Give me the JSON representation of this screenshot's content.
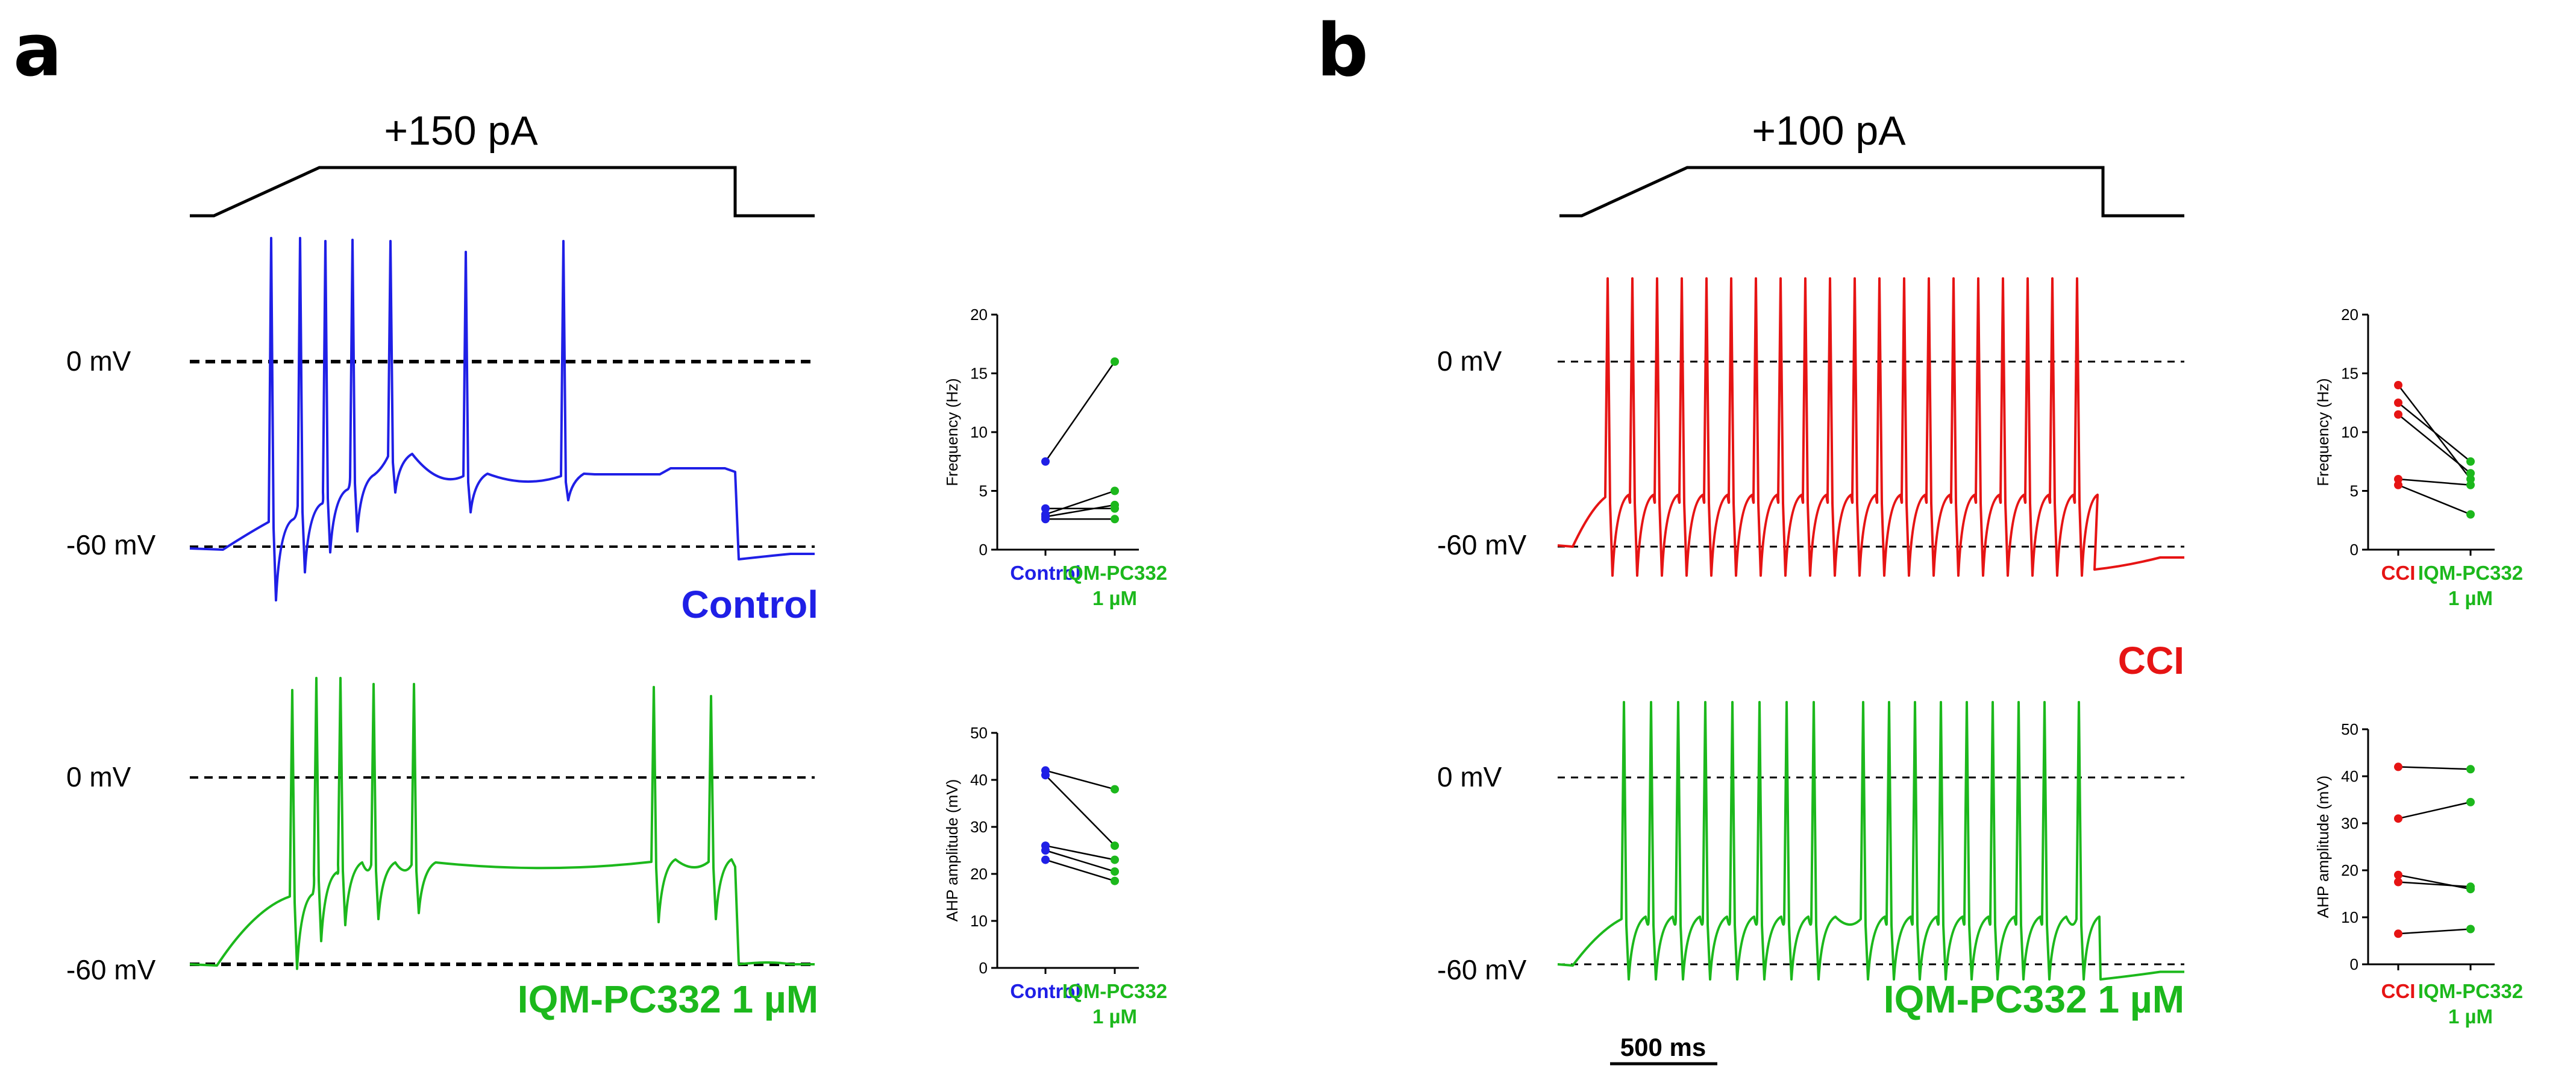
{
  "colors": {
    "control": "#1f1fe6",
    "drug": "#1cb81c",
    "cci": "#e61414",
    "black": "#000000"
  },
  "panels": [
    {
      "letter": "a",
      "stimulus_label": "+150 pA",
      "traces": [
        {
          "condition_label": "Control",
          "color": "#1f1fe6",
          "label_0mv": "0 mV",
          "label_60mv": "-60 mV",
          "spike_count": 7,
          "thick_dash": true
        },
        {
          "condition_label": "IQM-PC332 1 µM",
          "color": "#1cb81c",
          "label_0mv": "0 mV",
          "label_60mv": "-60 mV",
          "spike_count": 7,
          "thick_dash": false
        }
      ]
    },
    {
      "letter": "b",
      "stimulus_label": "+100 pA",
      "traces": [
        {
          "condition_label": "CCI",
          "color": "#e61414",
          "label_0mv": "0 mV",
          "label_60mv": "-60 mV",
          "spike_count": 20,
          "thick_dash": false
        },
        {
          "condition_label": "IQM-PC332 1 µM",
          "color": "#1cb81c",
          "label_0mv": "0 mV",
          "label_60mv": "-60 mV",
          "spike_count": 17,
          "thick_dash": false
        }
      ],
      "scale_bar_label": "500 ms"
    }
  ],
  "chart_data": [
    {
      "type": "scatter",
      "id": "a-frequency",
      "title": "",
      "xlabel": "",
      "ylabel": "Frequency (Hz)",
      "categories": [
        "Control",
        "IQM-PC332\n1 µM"
      ],
      "category_colors": [
        "#1f1fe6",
        "#1cb81c"
      ],
      "ylim": [
        0,
        20
      ],
      "yticks": [
        0,
        5,
        10,
        15,
        20
      ],
      "paired_values": [
        [
          7.5,
          16.0
        ],
        [
          3.5,
          3.5
        ],
        [
          3.0,
          5.0
        ],
        [
          2.8,
          3.8
        ],
        [
          2.6,
          2.6
        ]
      ]
    },
    {
      "type": "scatter",
      "id": "a-ahp",
      "title": "",
      "xlabel": "",
      "ylabel": "AHP amplitude (mV)",
      "categories": [
        "Control",
        "IQM-PC332\n1 µM"
      ],
      "category_colors": [
        "#1f1fe6",
        "#1cb81c"
      ],
      "ylim": [
        0,
        50
      ],
      "yticks": [
        0,
        10,
        20,
        30,
        40,
        50
      ],
      "paired_values": [
        [
          42.0,
          38.0
        ],
        [
          41.0,
          26.0
        ],
        [
          26.0,
          23.0
        ],
        [
          25.0,
          20.5
        ],
        [
          23.0,
          18.5
        ]
      ]
    },
    {
      "type": "scatter",
      "id": "b-frequency",
      "title": "",
      "xlabel": "",
      "ylabel": "Frequency (Hz)",
      "categories": [
        "CCI",
        "IQM-PC332\n1 µM"
      ],
      "category_colors": [
        "#e61414",
        "#1cb81c"
      ],
      "ylim": [
        0,
        20
      ],
      "yticks": [
        0,
        5,
        10,
        15,
        20
      ],
      "paired_values": [
        [
          14.0,
          6.0
        ],
        [
          12.5,
          7.5
        ],
        [
          11.5,
          6.5
        ],
        [
          6.0,
          5.5
        ],
        [
          5.5,
          3.0
        ]
      ]
    },
    {
      "type": "scatter",
      "id": "b-ahp",
      "title": "",
      "xlabel": "",
      "ylabel": "AHP amplitude (mV)",
      "categories": [
        "CCI",
        "IQM-PC332\n1 µM"
      ],
      "category_colors": [
        "#e61414",
        "#1cb81c"
      ],
      "ylim": [
        0,
        50
      ],
      "yticks": [
        0,
        10,
        20,
        30,
        40,
        50
      ],
      "paired_values": [
        [
          42.0,
          41.5
        ],
        [
          31.0,
          34.5
        ],
        [
          19.0,
          16.0
        ],
        [
          17.5,
          16.5
        ],
        [
          6.5,
          7.5
        ]
      ]
    }
  ]
}
